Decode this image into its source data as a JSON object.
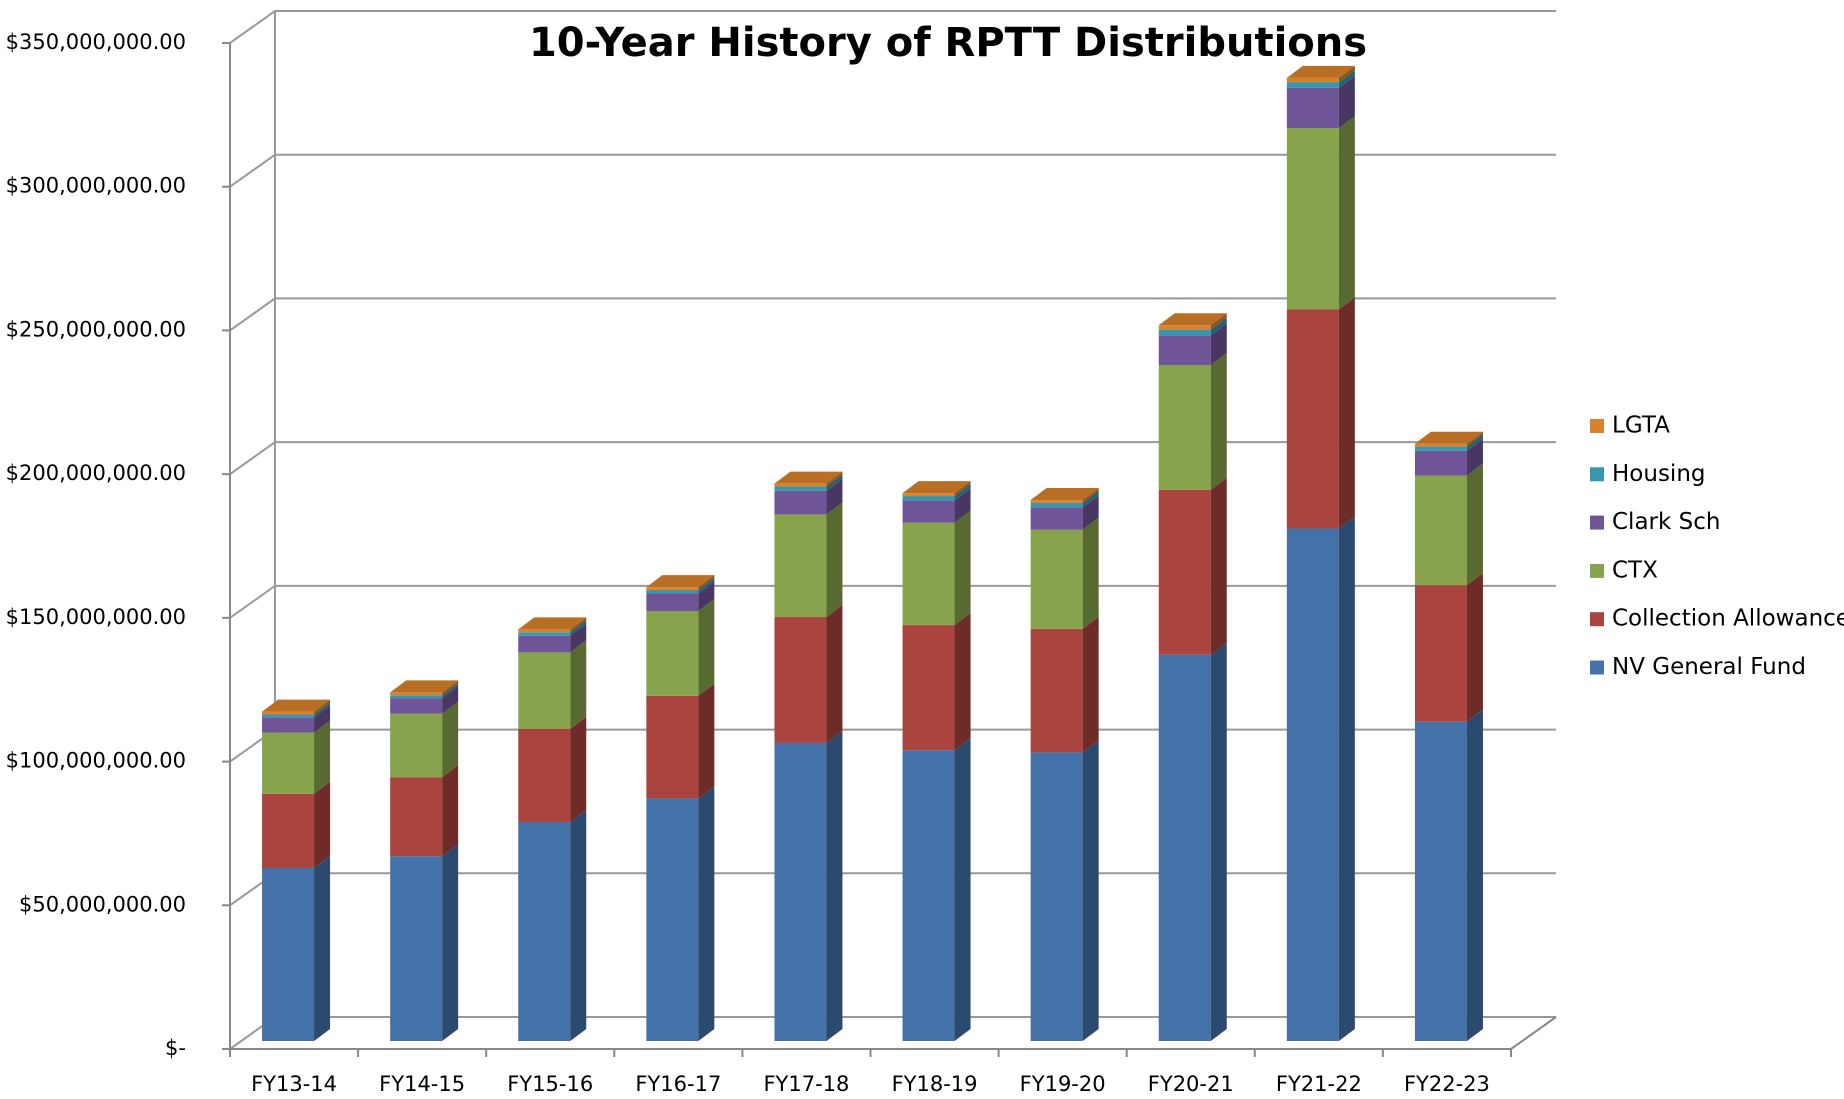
{
  "chart_data": {
    "type": "bar3d_stacked",
    "title": "10-Year History of RPTT Distributions",
    "categories": [
      "FY13-14",
      "FY14-15",
      "FY15-16",
      "FY16-17",
      "FY17-18",
      "FY18-19",
      "FY19-20",
      "FY20-21",
      "FY21-22",
      "FY22-23"
    ],
    "series": [
      {
        "name": "NV General Fund",
        "color": "#4472a8",
        "values": [
          60200000,
          64300000,
          76200000,
          84400000,
          103700000,
          101200000,
          100400000,
          134400000,
          178300000,
          111100000
        ]
      },
      {
        "name": "Collection Allowance",
        "color": "#a9443f",
        "values": [
          25800000,
          27500000,
          32400000,
          35700000,
          43800000,
          43500000,
          43000000,
          57400000,
          76200000,
          47500000
        ]
      },
      {
        "name": "CTX",
        "color": "#87a34b",
        "values": [
          21300000,
          22100000,
          26600000,
          29500000,
          35700000,
          35600000,
          34500000,
          43400000,
          63100000,
          38100000
        ]
      },
      {
        "name": "Clark Sch",
        "color": "#6f5597",
        "values": [
          5300000,
          5400000,
          5800000,
          6100000,
          8200000,
          7800000,
          7800000,
          10300000,
          14000000,
          8600000
        ]
      },
      {
        "name": "Housing",
        "color": "#3797b0",
        "values": [
          1000000,
          1000000,
          1200000,
          1200000,
          1500000,
          1500000,
          1500000,
          2000000,
          2000000,
          1500000
        ]
      },
      {
        "name": "LGTA",
        "color": "#d9822b",
        "values": [
          1000000,
          1000000,
          1000000,
          1000000,
          1000000,
          1000000,
          1000000,
          1500000,
          1500000,
          1000000
        ]
      }
    ],
    "ylim": [
      0,
      350000000
    ],
    "yticks": [
      {
        "value": 0,
        "label": "$-"
      },
      {
        "value": 50000000,
        "label": "$50,000,000.00"
      },
      {
        "value": 100000000,
        "label": "$100,000,000.00"
      },
      {
        "value": 150000000,
        "label": "$150,000,000.00"
      },
      {
        "value": 200000000,
        "label": "$200,000,000.00"
      },
      {
        "value": 250000000,
        "label": "$250,000,000.00"
      },
      {
        "value": 300000000,
        "label": "$300,000,000.00"
      },
      {
        "value": 350000000,
        "label": "$350,000,000.00"
      }
    ],
    "grid": true,
    "legend": "right"
  }
}
